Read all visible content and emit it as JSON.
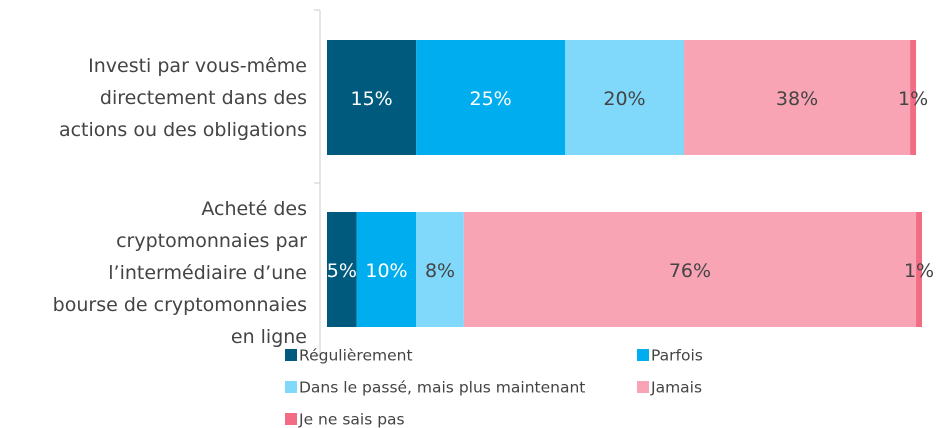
{
  "chart_data": {
    "type": "stacked-barh",
    "categories": [
      "Investi par vous-même\ndirectement dans des\nactions ou des obligations",
      "Acheté des\ncryptomonnaies par\nl’intermédiaire d’une\nbourse de cryptomonnaies\nen ligne"
    ],
    "series": [
      {
        "name": "Régulièrement",
        "color": "#005a7e",
        "label_color": "#ffffff",
        "values": [
          15,
          5
        ],
        "value_labels": [
          "15%",
          "5%"
        ]
      },
      {
        "name": "Parfois",
        "color": "#00aeef",
        "label_color": "#ffffff",
        "values": [
          25,
          10
        ],
        "value_labels": [
          "25%",
          "10%"
        ]
      },
      {
        "name": "Dans le passé, mais plus maintenant",
        "color": "#80d9fb",
        "label_color": "#444444",
        "values": [
          20,
          8
        ],
        "value_labels": [
          "20%",
          "8%"
        ]
      },
      {
        "name": "Jamais",
        "color": "#f9a4b4",
        "label_color": "#444444",
        "values": [
          38,
          76
        ],
        "value_labels": [
          "38%",
          "76%"
        ]
      },
      {
        "name": "Je ne sais pas",
        "color": "#f26c84",
        "label_color": "#444444",
        "values": [
          1,
          1
        ],
        "value_labels": [
          "1%",
          "1%"
        ]
      }
    ],
    "xlim": [
      0,
      100
    ]
  }
}
